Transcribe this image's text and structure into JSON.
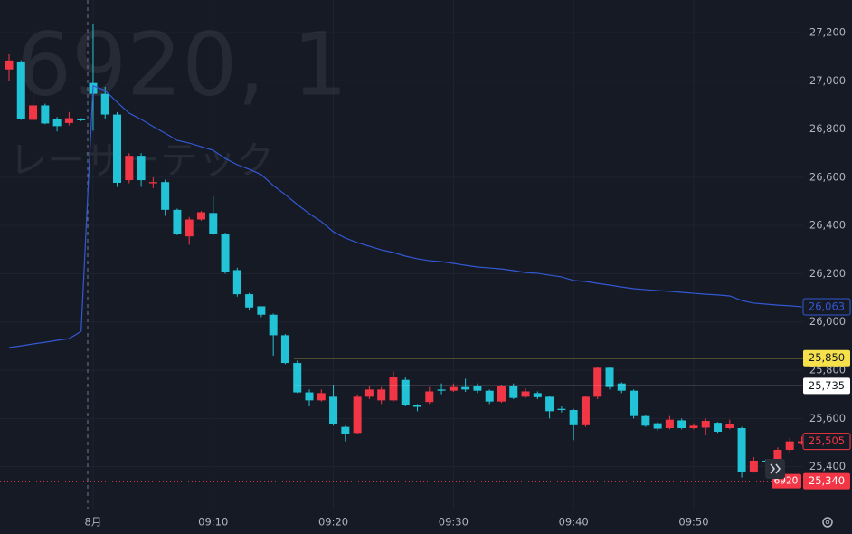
{
  "chart_data": {
    "type": "candlestick",
    "watermark_symbol": "6920, 1",
    "watermark_name": "レーザーテック",
    "categories": [
      null,
      null,
      null,
      null,
      null,
      null,
      null,
      "8月",
      null,
      null,
      null,
      null,
      null,
      null,
      null,
      null,
      null,
      "09:10",
      null,
      null,
      null,
      null,
      null,
      null,
      null,
      null,
      null,
      "09:20",
      null,
      null,
      null,
      null,
      null,
      null,
      null,
      null,
      null,
      "09:30",
      null,
      null,
      null,
      null,
      null,
      null,
      null,
      null,
      null,
      "09:40",
      null,
      null,
      null,
      null,
      null,
      null,
      null,
      null,
      null,
      "09:50",
      null,
      null,
      null,
      null,
      null,
      null,
      null,
      null,
      null
    ],
    "open": [
      27047,
      27080,
      26838,
      26898,
      26842,
      26825,
      26840,
      26991,
      26946,
      26860,
      26588,
      26689,
      26575,
      26580,
      26465,
      26355,
      26425,
      26452,
      26365,
      26215,
      26115,
      26065,
      26030,
      25945,
      25830,
      25708,
      25675,
      25690,
      25565,
      25540,
      25690,
      25675,
      25675,
      25760,
      25655,
      25668,
      25720,
      25715,
      25730,
      25735,
      25715,
      25670,
      25735,
      25690,
      25705,
      25690,
      25640,
      25635,
      25572,
      25690,
      25810,
      25745,
      25715,
      25610,
      25580,
      25560,
      25592,
      25560,
      25562,
      25582,
      25560,
      25560,
      25380,
      25425,
      25425,
      25470,
      25495
    ],
    "high": [
      27110,
      27085,
      26955,
      26905,
      26850,
      26870,
      26845,
      27237,
      26975,
      26870,
      26700,
      26700,
      26600,
      26590,
      26470,
      26435,
      26460,
      26520,
      26370,
      26225,
      26120,
      26060,
      26035,
      25950,
      25840,
      25720,
      25720,
      25740,
      25570,
      25700,
      25735,
      25730,
      25795,
      25770,
      25660,
      25730,
      25745,
      25745,
      25765,
      25745,
      25720,
      25740,
      25745,
      25725,
      25712,
      25695,
      25650,
      25640,
      25695,
      25815,
      25815,
      25750,
      25720,
      25615,
      25585,
      25610,
      25600,
      25580,
      25600,
      25585,
      25595,
      25565,
      25440,
      25430,
      25480,
      25520,
      25525
    ],
    "low": [
      27000,
      26838,
      26835,
      26820,
      26790,
      26815,
      26833,
      26793,
      26840,
      26560,
      26575,
      26560,
      26555,
      26440,
      26360,
      26320,
      26420,
      26360,
      26200,
      26105,
      26050,
      26020,
      25860,
      25825,
      25705,
      25650,
      25670,
      25570,
      25505,
      25535,
      25680,
      25660,
      25670,
      25650,
      25630,
      25660,
      25700,
      25710,
      25710,
      25705,
      25660,
      25665,
      25680,
      25685,
      25680,
      25600,
      25625,
      25510,
      25565,
      25680,
      25720,
      25705,
      25600,
      25565,
      25550,
      25555,
      25555,
      25555,
      25530,
      25540,
      25555,
      25355,
      25375,
      25410,
      25420,
      25460,
      25490
    ],
    "close": [
      27084,
      26842,
      26898,
      26823,
      26812,
      26845,
      26836,
      26946,
      26860,
      26577,
      26689,
      26588,
      26580,
      26465,
      26365,
      26425,
      26455,
      26365,
      26208,
      26115,
      26060,
      26030,
      25945,
      25830,
      25708,
      25675,
      25705,
      25575,
      25535,
      25690,
      25720,
      25720,
      25770,
      25655,
      25648,
      25712,
      25715,
      25730,
      25720,
      25715,
      25670,
      25735,
      25685,
      25712,
      25688,
      25630,
      25635,
      25572,
      25690,
      25810,
      25730,
      25715,
      25610,
      25570,
      25558,
      25595,
      25560,
      25570,
      25590,
      25545,
      25578,
      25377,
      25425,
      25418,
      25470,
      25505,
      25505
    ],
    "up_color": "#f23645",
    "down_color": "#22c3d6",
    "line": {
      "color": "#3358d4",
      "last_label": "26,063",
      "values": [
        25894,
        25901,
        25909,
        25916,
        25924,
        25931,
        25961,
        26979,
        26960,
        26911,
        26866,
        26840,
        26810,
        26783,
        26753,
        26742,
        26727,
        26712,
        26678,
        26652,
        26633,
        26611,
        26566,
        26528,
        26487,
        26449,
        26416,
        26374,
        26348,
        26329,
        26314,
        26299,
        26288,
        26273,
        26262,
        26254,
        26250,
        26243,
        26235,
        26228,
        26224,
        26220,
        26213,
        26205,
        26202,
        26194,
        26187,
        26172,
        26168,
        26160,
        26153,
        26145,
        26138,
        26134,
        26130,
        26127,
        26123,
        26119,
        26115,
        26112,
        26108,
        26089,
        26078,
        26074,
        26070,
        26067,
        26063
      ]
    },
    "price_lines": [
      {
        "value": 25850,
        "label": "25,850",
        "color": "#f7e14a"
      },
      {
        "value": 25735,
        "label": "25,735",
        "color": "#ffffff"
      }
    ],
    "last_price": {
      "value": 25505,
      "label": "25,505",
      "color": "#f23645"
    },
    "ref_price": {
      "value": 25340,
      "label": "25,340",
      "tag": "6920",
      "color": "#f23645"
    },
    "ylim": [
      25226,
      27335
    ],
    "yticks": [
      {
        "value": 25400,
        "label": "25,400"
      },
      {
        "value": 25600,
        "label": "25,600"
      },
      {
        "value": 25800,
        "label": "25,800"
      },
      {
        "value": 26000,
        "label": "26,000"
      },
      {
        "value": 26200,
        "label": "26,200"
      },
      {
        "value": 26400,
        "label": "26,400"
      },
      {
        "value": 26600,
        "label": "26,600"
      },
      {
        "value": 26800,
        "label": "26,800"
      },
      {
        "value": 27000,
        "label": "27,000"
      },
      {
        "value": 27200,
        "label": "27,200"
      }
    ],
    "grid": true
  }
}
